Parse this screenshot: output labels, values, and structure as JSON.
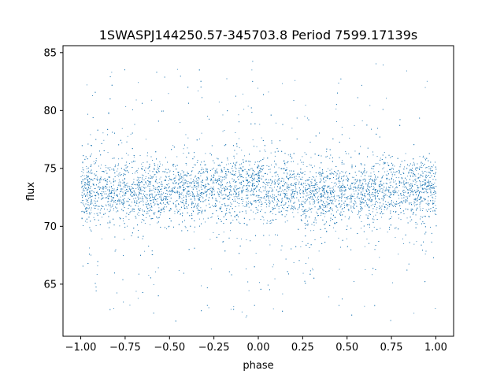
{
  "chart_data": {
    "type": "scatter",
    "title": "1SWASPJ144250.57-345703.8 Period 7599.17139s",
    "xlabel": "phase",
    "ylabel": "flux",
    "xlim": [
      -1.1,
      1.1
    ],
    "ylim": [
      60.5,
      85.6
    ],
    "x_ticks": [
      -1.0,
      -0.75,
      -0.5,
      -0.25,
      0.0,
      0.25,
      0.5,
      0.75,
      1.0
    ],
    "x_tick_labels": [
      "−1.00",
      "−0.75",
      "−0.50",
      "−0.25",
      "0.00",
      "0.25",
      "0.50",
      "0.75",
      "1.00"
    ],
    "y_ticks": [
      65,
      70,
      75,
      80,
      85
    ],
    "y_tick_labels": [
      "65",
      "70",
      "75",
      "80",
      "85"
    ],
    "grid": false,
    "legend": "none",
    "marker_color": "#1f77b4",
    "series": [
      {
        "x_range": [
          -1.0,
          1.0
        ],
        "flux_median_by_phase": {
          "phase": [
            -1.0,
            -0.75,
            -0.5,
            -0.25,
            0.0,
            0.25,
            0.5,
            0.75,
            1.0
          ],
          "flux": [
            73.2,
            73.0,
            72.9,
            73.4,
            73.3,
            73.0,
            72.8,
            73.2,
            73.3
          ]
        },
        "core_band": [
          70.5,
          76.5
        ],
        "flux_min": 61.8,
        "flux_max": 84.3
      }
    ]
  }
}
